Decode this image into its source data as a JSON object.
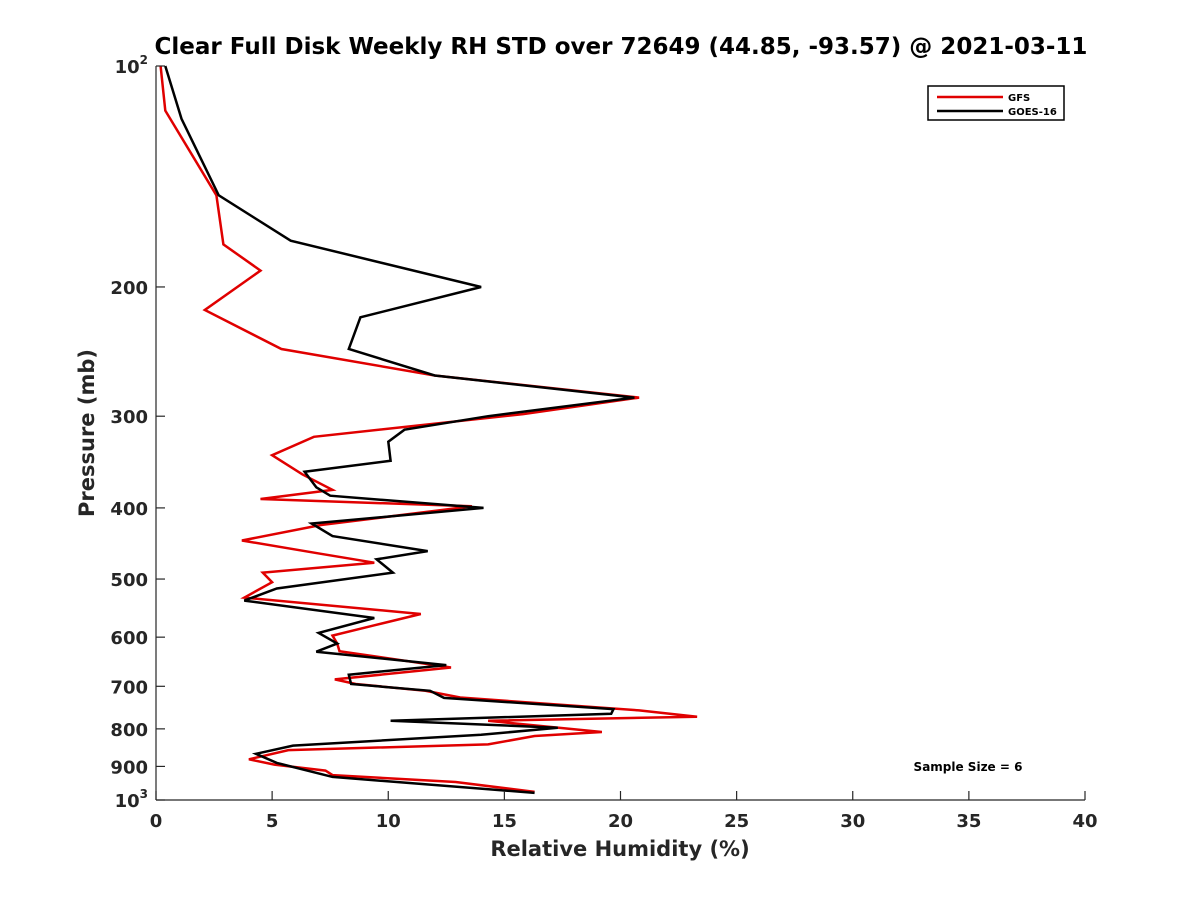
{
  "chart_data": {
    "type": "line",
    "title": "Clear Full Disk Weekly RH STD over 72649 (44.85, -93.57) @ 2021-03-11",
    "xlabel": "Relative Humidity (%)",
    "ylabel": "Pressure (mb)",
    "xlim": [
      0,
      40
    ],
    "ylim": [
      100,
      1000
    ],
    "y_scale": "log",
    "y_reversed": true,
    "x_ticks": [
      "0",
      "5",
      "10",
      "15",
      "20",
      "25",
      "30",
      "35",
      "40"
    ],
    "y_ticks": [
      {
        "value": 100,
        "base": "10",
        "exp": "2"
      },
      {
        "value": 200,
        "label": "200"
      },
      {
        "value": 300,
        "label": "300"
      },
      {
        "value": 400,
        "label": "400"
      },
      {
        "value": 500,
        "label": "500"
      },
      {
        "value": 600,
        "label": "600"
      },
      {
        "value": 700,
        "label": "700"
      },
      {
        "value": 800,
        "label": "800"
      },
      {
        "value": 900,
        "label": "900"
      },
      {
        "value": 1000,
        "base": "10",
        "exp": "3"
      }
    ],
    "legend_position": "top-right",
    "grid": false,
    "annotation": "Sample Size = 6",
    "series": [
      {
        "name": "GFS",
        "color": "#e00000",
        "points": [
          [
            0.2,
            100
          ],
          [
            0.4,
            115
          ],
          [
            2.6,
            150
          ],
          [
            2.9,
            175
          ],
          [
            4.5,
            190
          ],
          [
            2.1,
            215
          ],
          [
            5.4,
            243
          ],
          [
            12.0,
            264
          ],
          [
            20.8,
            283
          ],
          [
            15.8,
            298
          ],
          [
            6.8,
            320
          ],
          [
            5.0,
            339
          ],
          [
            6.3,
            360
          ],
          [
            7.6,
            378
          ],
          [
            4.5,
            389
          ],
          [
            13.6,
            398
          ],
          [
            7.1,
            422
          ],
          [
            3.7,
            443
          ],
          [
            7.1,
            462
          ],
          [
            9.4,
            475
          ],
          [
            4.6,
            490
          ],
          [
            5.0,
            505
          ],
          [
            3.8,
            530
          ],
          [
            11.4,
            558
          ],
          [
            9.4,
            578
          ],
          [
            7.6,
            597
          ],
          [
            7.8,
            612
          ],
          [
            7.9,
            627
          ],
          [
            12.7,
            660
          ],
          [
            7.7,
            685
          ],
          [
            8.6,
            695
          ],
          [
            11.6,
            710
          ],
          [
            13.1,
            725
          ],
          [
            20.8,
            755
          ],
          [
            23.3,
            770
          ],
          [
            14.3,
            780
          ],
          [
            19.2,
            808
          ],
          [
            16.3,
            818
          ],
          [
            14.3,
            840
          ],
          [
            5.7,
            855
          ],
          [
            4.0,
            880
          ],
          [
            5.1,
            895
          ],
          [
            7.3,
            912
          ],
          [
            7.6,
            925
          ],
          [
            12.9,
            945
          ],
          [
            16.3,
            975
          ]
        ]
      },
      {
        "name": "GOES-16",
        "color": "#000000",
        "points": [
          [
            0.4,
            100
          ],
          [
            1.1,
            118
          ],
          [
            2.7,
            150
          ],
          [
            5.8,
            173
          ],
          [
            14.0,
            200
          ],
          [
            8.8,
            220
          ],
          [
            8.3,
            243
          ],
          [
            12.0,
            264
          ],
          [
            20.6,
            283
          ],
          [
            14.3,
            300
          ],
          [
            10.7,
            313
          ],
          [
            10.0,
            325
          ],
          [
            10.1,
            345
          ],
          [
            6.4,
            357
          ],
          [
            6.9,
            375
          ],
          [
            7.5,
            385
          ],
          [
            14.1,
            400
          ],
          [
            6.7,
            420
          ],
          [
            7.6,
            437
          ],
          [
            11.7,
            458
          ],
          [
            9.5,
            470
          ],
          [
            10.2,
            490
          ],
          [
            5.2,
            515
          ],
          [
            3.8,
            535
          ],
          [
            9.4,
            565
          ],
          [
            7.0,
            592
          ],
          [
            7.8,
            612
          ],
          [
            6.9,
            628
          ],
          [
            12.5,
            655
          ],
          [
            8.3,
            675
          ],
          [
            8.4,
            695
          ],
          [
            11.8,
            710
          ],
          [
            12.4,
            726
          ],
          [
            19.7,
            752
          ],
          [
            19.6,
            763
          ],
          [
            10.1,
            780
          ],
          [
            17.3,
            797
          ],
          [
            14.0,
            815
          ],
          [
            5.9,
            843
          ],
          [
            4.3,
            865
          ],
          [
            5.2,
            890
          ],
          [
            7.6,
            930
          ],
          [
            16.3,
            978
          ]
        ]
      }
    ]
  }
}
